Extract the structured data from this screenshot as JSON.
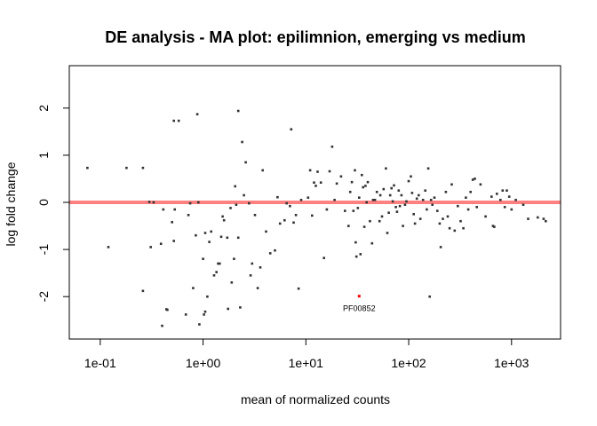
{
  "chart_data": {
    "type": "scatter",
    "title": "DE analysis - MA plot: epilimnion, emerging vs medium",
    "xlabel": "mean of normalized counts",
    "ylabel": "log fold change",
    "x_scale": "log",
    "xlim": [
      0.05,
      3000
    ],
    "ylim": [
      -2.9,
      2.9
    ],
    "x_ticks": [
      {
        "value": 0.1,
        "label": "1e-01"
      },
      {
        "value": 1,
        "label": "1e+00"
      },
      {
        "value": 10,
        "label": "1e+01"
      },
      {
        "value": 100,
        "label": "1e+02"
      },
      {
        "value": 1000,
        "label": "1e+03"
      }
    ],
    "y_ticks": [
      {
        "value": -2,
        "label": "-2"
      },
      {
        "value": -1,
        "label": "-1"
      },
      {
        "value": 0,
        "label": "0"
      },
      {
        "value": 1,
        "label": "1"
      },
      {
        "value": 2,
        "label": "2"
      }
    ],
    "reference_line": {
      "y": 0,
      "color": "#ff8080"
    },
    "point_color": "#333333",
    "highlight_color": "#ff0000",
    "highlight": {
      "x": 33,
      "y": -1.99,
      "label": "PF00852"
    },
    "series": [
      {
        "points": [
          [
            0.075,
            0.73
          ],
          [
            0.12,
            -0.95
          ],
          [
            0.18,
            0.73
          ],
          [
            0.26,
            0.73
          ],
          [
            0.26,
            -1.88
          ],
          [
            0.3,
            0.01
          ],
          [
            0.31,
            -0.95
          ],
          [
            0.33,
            0.0
          ],
          [
            0.39,
            -0.88
          ],
          [
            0.4,
            -2.62
          ],
          [
            0.41,
            -0.15
          ],
          [
            0.44,
            -2.27
          ],
          [
            0.45,
            -2.28
          ],
          [
            0.5,
            -0.42
          ],
          [
            0.52,
            -0.82
          ],
          [
            0.52,
            1.73
          ],
          [
            0.53,
            -0.15
          ],
          [
            0.58,
            1.73
          ],
          [
            0.68,
            -2.38
          ],
          [
            0.72,
            -0.27
          ],
          [
            0.75,
            -0.02
          ],
          [
            0.8,
            -1.82
          ],
          [
            0.85,
            -0.7
          ],
          [
            0.88,
            1.87
          ],
          [
            0.9,
            0.0
          ],
          [
            0.92,
            -2.59
          ],
          [
            1.0,
            -1.2
          ],
          [
            1.02,
            -2.38
          ],
          [
            1.05,
            -2.32
          ],
          [
            1.05,
            -0.65
          ],
          [
            1.1,
            -2.0
          ],
          [
            1.15,
            -0.84
          ],
          [
            1.2,
            -0.62
          ],
          [
            1.28,
            -1.55
          ],
          [
            1.35,
            -1.48
          ],
          [
            1.4,
            -1.3
          ],
          [
            1.45,
            -1.3
          ],
          [
            1.5,
            -0.73
          ],
          [
            1.55,
            -0.3
          ],
          [
            1.6,
            -0.38
          ],
          [
            1.72,
            -0.75
          ],
          [
            1.75,
            -2.26
          ],
          [
            1.85,
            -0.12
          ],
          [
            1.9,
            -1.7
          ],
          [
            2.0,
            -1.2
          ],
          [
            2.05,
            0.34
          ],
          [
            2.1,
            -0.05
          ],
          [
            2.2,
            1.94
          ],
          [
            2.2,
            -0.75
          ],
          [
            2.3,
            -2.23
          ],
          [
            2.4,
            1.28
          ],
          [
            2.5,
            0.15
          ],
          [
            2.6,
            0.85
          ],
          [
            2.8,
            -0.02
          ],
          [
            2.9,
            -1.55
          ],
          [
            3.0,
            -1.3
          ],
          [
            3.2,
            -0.27
          ],
          [
            3.4,
            -1.82
          ],
          [
            3.6,
            -1.38
          ],
          [
            3.8,
            0.68
          ],
          [
            4.1,
            -0.62
          ],
          [
            4.5,
            -1.08
          ],
          [
            5.0,
            -1.02
          ],
          [
            5.3,
            0.11
          ],
          [
            5.6,
            -0.45
          ],
          [
            6.2,
            -0.38
          ],
          [
            6.5,
            -0.02
          ],
          [
            7.0,
            -0.08
          ],
          [
            7.2,
            1.55
          ],
          [
            7.6,
            -0.43
          ],
          [
            8.0,
            -0.27
          ],
          [
            8.5,
            -1.83
          ],
          [
            9.0,
            0.05
          ],
          [
            10.5,
            0.1
          ],
          [
            11.0,
            0.68
          ],
          [
            11.5,
            -0.28
          ],
          [
            12.0,
            0.42
          ],
          [
            12.5,
            0.35
          ],
          [
            13.0,
            0.65
          ],
          [
            14.0,
            0.42
          ],
          [
            15.0,
            -1.18
          ],
          [
            16.0,
            -0.15
          ],
          [
            17.0,
            0.66
          ],
          [
            18.0,
            1.18
          ],
          [
            19.0,
            0.05
          ],
          [
            20.0,
            0.4
          ],
          [
            22.0,
            0.55
          ],
          [
            24.0,
            -0.18
          ],
          [
            26.0,
            -0.5
          ],
          [
            27.0,
            0.22
          ],
          [
            28.0,
            0.43
          ],
          [
            29.0,
            -0.18
          ],
          [
            30.0,
            0.68
          ],
          [
            30.5,
            -0.85
          ],
          [
            31.0,
            -1.15
          ],
          [
            32.0,
            -0.12
          ],
          [
            33.0,
            0.1
          ],
          [
            34.0,
            -1.1
          ],
          [
            35.0,
            0.58
          ],
          [
            36.0,
            0.32
          ],
          [
            37.0,
            -0.52
          ],
          [
            38.0,
            0.35
          ],
          [
            39.0,
            0.0
          ],
          [
            40.0,
            0.43
          ],
          [
            42.0,
            -0.4
          ],
          [
            44.0,
            -0.87
          ],
          [
            45.0,
            0.05
          ],
          [
            47.0,
            0.05
          ],
          [
            49.0,
            0.22
          ],
          [
            52.0,
            -0.4
          ],
          [
            53.0,
            0.15
          ],
          [
            55.0,
            -0.3
          ],
          [
            57.0,
            0.28
          ],
          [
            60.0,
            0.72
          ],
          [
            62.0,
            -0.65
          ],
          [
            64.0,
            -0.22
          ],
          [
            66.0,
            0.15
          ],
          [
            68.0,
            0.3
          ],
          [
            70.0,
            0.02
          ],
          [
            72.0,
            0.36
          ],
          [
            75.0,
            -0.1
          ],
          [
            77.0,
            -0.2
          ],
          [
            80.0,
            0.25
          ],
          [
            82.0,
            -0.08
          ],
          [
            85.0,
            0.15
          ],
          [
            88.0,
            -0.5
          ],
          [
            92.0,
            -0.05
          ],
          [
            95.0,
            0.02
          ],
          [
            100.0,
            0.45
          ],
          [
            105.0,
            0.55
          ],
          [
            108.0,
            0.2
          ],
          [
            112.0,
            -0.25
          ],
          [
            115.0,
            -0.45
          ],
          [
            120.0,
            0.08
          ],
          [
            125.0,
            0.15
          ],
          [
            130.0,
            -0.35
          ],
          [
            138.0,
            0.05
          ],
          [
            145.0,
            0.25
          ],
          [
            150.0,
            -0.15
          ],
          [
            155.0,
            0.72
          ],
          [
            160.0,
            -2.0
          ],
          [
            165.0,
            0.05
          ],
          [
            170.0,
            -0.05
          ],
          [
            178.0,
            0.1
          ],
          [
            190.0,
            -0.18
          ],
          [
            200.0,
            -0.45
          ],
          [
            205.0,
            -0.95
          ],
          [
            215.0,
            -0.35
          ],
          [
            230.0,
            0.22
          ],
          [
            240.0,
            -0.3
          ],
          [
            250.0,
            -0.55
          ],
          [
            262.0,
            0.38
          ],
          [
            280.0,
            -0.6
          ],
          [
            300.0,
            -0.08
          ],
          [
            320.0,
            -0.4
          ],
          [
            340.0,
            -0.55
          ],
          [
            360.0,
            0.1
          ],
          [
            380.0,
            -0.15
          ],
          [
            400.0,
            0.22
          ],
          [
            420.0,
            0.48
          ],
          [
            440.0,
            0.5
          ],
          [
            460.0,
            -0.1
          ],
          [
            500.0,
            0.38
          ],
          [
            560.0,
            -0.3
          ],
          [
            640.0,
            0.12
          ],
          [
            660.0,
            -0.5
          ],
          [
            680.0,
            -0.52
          ],
          [
            720.0,
            0.18
          ],
          [
            780.0,
            0.05
          ],
          [
            820.0,
            0.25
          ],
          [
            860.0,
            -0.1
          ],
          [
            900.0,
            0.25
          ],
          [
            950.0,
            0.12
          ],
          [
            1000.0,
            -0.15
          ],
          [
            1100.0,
            0.05
          ],
          [
            1300.0,
            -0.05
          ],
          [
            1450.0,
            -0.35
          ],
          [
            1800.0,
            -0.32
          ],
          [
            2050.0,
            -0.35
          ],
          [
            2150.0,
            -0.4
          ]
        ]
      }
    ]
  }
}
